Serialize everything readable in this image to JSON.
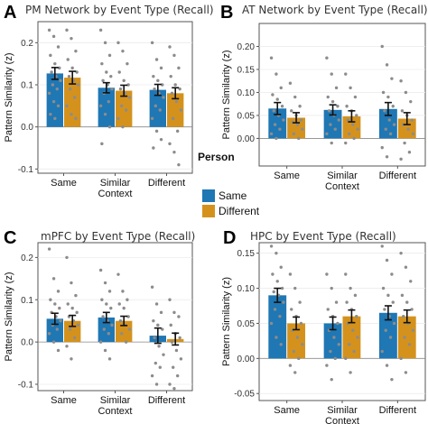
{
  "legend": {
    "title": "Person",
    "entries": [
      {
        "label": "Same",
        "color": "#1f77b4"
      },
      {
        "label": "Different",
        "color": "#d4921d"
      }
    ]
  },
  "chart_data": [
    {
      "type": "bar",
      "letter": "A",
      "title": "PM Network by Event Type (Recall)",
      "ylabel": "Pattern Similarity (z)",
      "xlabel": "",
      "ylim": [
        -0.11,
        0.25
      ],
      "yticks": [
        -0.1,
        0.0,
        0.1,
        0.2
      ],
      "ytick_labels": [
        "-0.1",
        "0.0",
        "0.1",
        "0.2"
      ],
      "categories": [
        "Same",
        "Similar\nContext",
        "Different"
      ],
      "series": [
        {
          "name": "Same",
          "color": "#1f77b4",
          "values": [
            0.127,
            0.093,
            0.088
          ],
          "errors": [
            0.014,
            0.012,
            0.013
          ],
          "points": [
            [
              0.23,
              0.215,
              0.19,
              0.17,
              0.15,
              0.14,
              0.13,
              0.12,
              0.11,
              0.1,
              0.09,
              0.08,
              0.06,
              0.05,
              0.03,
              0.02
            ],
            [
              0.23,
              0.2,
              0.17,
              0.15,
              0.13,
              0.12,
              0.11,
              0.1,
              0.09,
              0.08,
              0.06,
              0.05,
              0.03,
              0.0,
              -0.04
            ],
            [
              0.2,
              0.16,
              0.14,
              0.12,
              0.11,
              0.1,
              0.09,
              0.08,
              0.07,
              0.05,
              0.04,
              0.02,
              -0.01,
              -0.03,
              -0.05
            ]
          ]
        },
        {
          "name": "Different",
          "color": "#d4921d",
          "values": [
            0.117,
            0.086,
            0.08
          ],
          "errors": [
            0.015,
            0.013,
            0.013
          ],
          "points": [
            [
              0.23,
              0.21,
              0.18,
              0.16,
              0.14,
              0.13,
              0.12,
              0.11,
              0.1,
              0.09,
              0.07,
              0.05,
              0.03,
              0.02
            ],
            [
              0.2,
              0.18,
              0.15,
              0.13,
              0.11,
              0.1,
              0.09,
              0.08,
              0.07,
              0.05,
              0.04,
              0.02,
              0.0
            ],
            [
              0.19,
              0.17,
              0.14,
              0.12,
              0.1,
              0.09,
              0.08,
              0.06,
              0.04,
              0.02,
              -0.01,
              -0.04,
              -0.06,
              -0.09
            ]
          ]
        }
      ]
    },
    {
      "type": "bar",
      "letter": "B",
      "title": "AT Network by Event Type (Recall)",
      "ylabel": "Pattern Similarity (z)",
      "xlabel": "",
      "ylim": [
        -0.06,
        0.25
      ],
      "yticks": [
        0.0,
        0.05,
        0.1,
        0.15,
        0.2
      ],
      "ytick_labels": [
        "0.00",
        "0.05",
        "0.10",
        "0.15",
        "0.20"
      ],
      "categories": [
        "Same",
        "Similar\nContext",
        "Different"
      ],
      "series": [
        {
          "name": "Same",
          "color": "#1f77b4",
          "values": [
            0.065,
            0.062,
            0.064
          ],
          "errors": [
            0.013,
            0.011,
            0.014
          ],
          "points": [
            [
              0.175,
              0.14,
              0.11,
              0.095,
              0.085,
              0.07,
              0.06,
              0.05,
              0.04,
              0.03,
              0.02,
              0.01,
              0.0
            ],
            [
              0.175,
              0.14,
              0.11,
              0.09,
              0.08,
              0.07,
              0.06,
              0.05,
              0.04,
              0.03,
              0.02,
              0.01,
              -0.01
            ],
            [
              0.2,
              0.16,
              0.13,
              0.1,
              0.09,
              0.07,
              0.06,
              0.04,
              0.03,
              0.02,
              0.01,
              -0.02,
              -0.04
            ]
          ]
        },
        {
          "name": "Different",
          "color": "#d4921d",
          "values": [
            0.045,
            0.048,
            0.043
          ],
          "errors": [
            0.011,
            0.012,
            0.013
          ],
          "points": [
            [
              0.12,
              0.09,
              0.07,
              0.06,
              0.05,
              0.04,
              0.035,
              0.03,
              0.02,
              0.01,
              0.0
            ],
            [
              0.14,
              0.11,
              0.09,
              0.07,
              0.06,
              0.05,
              0.04,
              0.03,
              0.02,
              0.01,
              0.0,
              -0.01
            ],
            [
              0.125,
              0.1,
              0.08,
              0.06,
              0.05,
              0.04,
              0.03,
              0.02,
              0.01,
              -0.01,
              -0.03,
              -0.045
            ]
          ]
        }
      ]
    },
    {
      "type": "bar",
      "letter": "C",
      "title": "mPFC by Event Type (Recall)",
      "ylabel": "Pattern Similarity (z)",
      "xlabel": "",
      "ylim": [
        -0.115,
        0.235
      ],
      "yticks": [
        -0.1,
        0.0,
        0.1,
        0.2
      ],
      "ytick_labels": [
        "-0.1",
        "0.0",
        "0.1",
        "0.2"
      ],
      "categories": [
        "Same",
        "Similar\nContext",
        "Different"
      ],
      "series": [
        {
          "name": "Same",
          "color": "#1f77b4",
          "values": [
            0.055,
            0.058,
            0.015
          ],
          "errors": [
            0.013,
            0.012,
            0.018
          ],
          "points": [
            [
              0.22,
              0.15,
              0.12,
              0.1,
              0.09,
              0.08,
              0.07,
              0.06,
              0.05,
              0.04,
              0.03,
              0.02,
              0.0,
              -0.02
            ],
            [
              0.17,
              0.14,
              0.12,
              0.1,
              0.09,
              0.08,
              0.06,
              0.05,
              0.04,
              0.03,
              0.02,
              0.0,
              -0.02,
              -0.04
            ],
            [
              0.13,
              0.09,
              0.07,
              0.05,
              0.04,
              0.03,
              0.01,
              -0.01,
              -0.03,
              -0.05,
              -0.06,
              -0.08,
              -0.1
            ]
          ]
        },
        {
          "name": "Different",
          "color": "#d4921d",
          "values": [
            0.05,
            0.05,
            0.007
          ],
          "errors": [
            0.013,
            0.011,
            0.014
          ],
          "points": [
            [
              0.2,
              0.14,
              0.11,
              0.09,
              0.08,
              0.07,
              0.06,
              0.05,
              0.04,
              0.03,
              0.01,
              -0.01,
              -0.04
            ],
            [
              0.16,
              0.12,
              0.1,
              0.09,
              0.08,
              0.06,
              0.05,
              0.04,
              0.03,
              0.02,
              0.0
            ],
            [
              0.1,
              0.07,
              0.06,
              0.04,
              0.02,
              0.01,
              0.0,
              -0.02,
              -0.04,
              -0.06,
              -0.08,
              -0.1,
              -0.11
            ]
          ]
        }
      ]
    },
    {
      "type": "bar",
      "letter": "D",
      "title": "HPC by Event Type (Recall)",
      "ylabel": "Pattern Similarity (z)",
      "xlabel": "",
      "ylim": [
        -0.06,
        0.165
      ],
      "yticks": [
        -0.05,
        0.0,
        0.05,
        0.1,
        0.15
      ],
      "ytick_labels": [
        "-0.05",
        "0.00",
        "0.05",
        "0.10",
        "0.15"
      ],
      "categories": [
        "Same",
        "Similar\nContext",
        "Different"
      ],
      "series": [
        {
          "name": "Same",
          "color": "#1f77b4",
          "values": [
            0.09,
            0.05,
            0.065
          ],
          "errors": [
            0.01,
            0.009,
            0.01
          ],
          "points": [
            [
              0.16,
              0.15,
              0.13,
              0.12,
              0.11,
              0.1,
              0.095,
              0.09,
              0.08,
              0.07,
              0.06,
              0.05,
              0.03,
              0.02
            ],
            [
              0.12,
              0.1,
              0.08,
              0.07,
              0.06,
              0.05,
              0.04,
              0.03,
              0.02,
              0.01,
              0.0,
              -0.01,
              -0.03
            ],
            [
              0.16,
              0.14,
              0.12,
              0.1,
              0.09,
              0.08,
              0.07,
              0.06,
              0.05,
              0.04,
              0.03,
              0.01,
              -0.01,
              -0.03
            ]
          ]
        },
        {
          "name": "Different",
          "color": "#d4921d",
          "values": [
            0.05,
            0.06,
            0.06
          ],
          "errors": [
            0.009,
            0.009,
            0.009
          ],
          "points": [
            [
              0.12,
              0.1,
              0.08,
              0.07,
              0.06,
              0.05,
              0.04,
              0.03,
              0.02,
              0.01,
              0.0,
              -0.01,
              -0.02
            ],
            [
              0.12,
              0.1,
              0.09,
              0.08,
              0.07,
              0.06,
              0.05,
              0.04,
              0.03,
              0.02,
              0.01,
              0.0,
              -0.02
            ],
            [
              0.15,
              0.13,
              0.11,
              0.09,
              0.08,
              0.07,
              0.06,
              0.05,
              0.04,
              0.03,
              0.02,
              0.0,
              -0.02
            ]
          ]
        }
      ]
    }
  ]
}
